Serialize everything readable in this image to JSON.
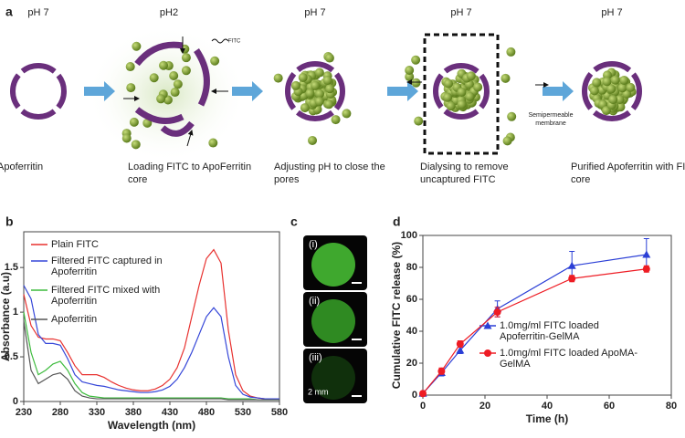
{
  "panel_a": {
    "label": "a",
    "steps": [
      {
        "ph": "pH 7",
        "caption": "Apoferritin"
      },
      {
        "ph": "pH2",
        "caption": "Loading FITC  to ApoFerritin core"
      },
      {
        "ph": "pH 7",
        "caption": "Adjusting pH to close the pores"
      },
      {
        "ph": "pH 7",
        "caption": "Dialysing to remove uncaptured FITC"
      },
      {
        "ph": "pH 7",
        "caption": "Purified Apoferritin with FITC  core"
      }
    ],
    "fitc_tag": "FITC",
    "membrane": "Semipermeable membrane"
  },
  "panel_c": {
    "label": "c",
    "images": [
      "(i)",
      "(ii)",
      "(iii)"
    ],
    "scale": "2 mm"
  },
  "chart_data": [
    {
      "type": "line",
      "label": "b",
      "x_label": "Wavelength (nm)",
      "y_label": "Absorbance (a.u)",
      "xlim": [
        230,
        580
      ],
      "xticks": [
        230,
        280,
        330,
        380,
        430,
        480,
        530,
        580
      ],
      "ylim": [
        0,
        1.9
      ],
      "yticks": [
        0,
        0.5,
        1,
        1.5
      ],
      "legend": "upper left",
      "x": [
        230,
        240,
        250,
        260,
        270,
        280,
        290,
        300,
        310,
        320,
        330,
        340,
        350,
        360,
        370,
        380,
        390,
        400,
        410,
        420,
        430,
        440,
        450,
        460,
        470,
        480,
        490,
        500,
        510,
        520,
        530,
        540,
        550,
        560,
        570,
        580
      ],
      "series": [
        {
          "name": "Plain FITC",
          "color": "#e8312f",
          "values": [
            1.2,
            0.85,
            0.72,
            0.7,
            0.7,
            0.68,
            0.55,
            0.4,
            0.3,
            0.3,
            0.3,
            0.27,
            0.22,
            0.18,
            0.15,
            0.13,
            0.12,
            0.12,
            0.14,
            0.18,
            0.25,
            0.38,
            0.6,
            0.95,
            1.3,
            1.6,
            1.7,
            1.55,
            0.8,
            0.3,
            0.12,
            0.06,
            0.04,
            0.03,
            0.03,
            0.03
          ]
        },
        {
          "name": "Filtered  FITC captured in Apoferritin",
          "color": "#3546d8",
          "values": [
            1.3,
            1.15,
            0.75,
            0.65,
            0.65,
            0.63,
            0.48,
            0.3,
            0.22,
            0.2,
            0.18,
            0.17,
            0.15,
            0.13,
            0.12,
            0.11,
            0.1,
            0.1,
            0.11,
            0.13,
            0.17,
            0.25,
            0.38,
            0.55,
            0.75,
            0.95,
            1.05,
            0.95,
            0.5,
            0.18,
            0.08,
            0.05,
            0.04,
            0.03,
            0.03,
            0.03
          ]
        },
        {
          "name": "Filtered  FITC mixed with Apoferritin",
          "color": "#3dbb3d",
          "values": [
            1.0,
            0.55,
            0.3,
            0.35,
            0.42,
            0.45,
            0.35,
            0.2,
            0.1,
            0.06,
            0.05,
            0.04,
            0.04,
            0.04,
            0.04,
            0.04,
            0.04,
            0.04,
            0.04,
            0.04,
            0.04,
            0.04,
            0.04,
            0.04,
            0.04,
            0.04,
            0.04,
            0.04,
            0.03,
            0.03,
            0.03,
            0.03,
            0.02,
            0.02,
            0.02,
            0.02
          ]
        },
        {
          "name": "Apoferritin",
          "color": "#555555",
          "values": [
            0.9,
            0.35,
            0.2,
            0.25,
            0.3,
            0.32,
            0.25,
            0.12,
            0.06,
            0.04,
            0.03,
            0.03,
            0.03,
            0.03,
            0.03,
            0.03,
            0.03,
            0.03,
            0.03,
            0.03,
            0.03,
            0.03,
            0.03,
            0.03,
            0.03,
            0.03,
            0.03,
            0.03,
            0.02,
            0.02,
            0.02,
            0.02,
            0.02,
            0.02,
            0.02,
            0.02
          ]
        }
      ]
    },
    {
      "type": "line",
      "label": "d",
      "x_label": "Time (h)",
      "y_label": "Cumulative FITC release (%)",
      "xlim": [
        0,
        80
      ],
      "xticks": [
        0,
        20,
        40,
        60,
        80
      ],
      "ylim": [
        0,
        100
      ],
      "yticks": [
        0,
        20,
        40,
        60,
        80,
        100
      ],
      "legend": "center right",
      "x": [
        0,
        6,
        12,
        24,
        48,
        72
      ],
      "series": [
        {
          "name": "1.0mg/ml FITC loaded Apoferritin-GelMA",
          "color": "#2b3fd6",
          "marker": "triangle",
          "values": [
            1,
            14,
            28,
            54,
            81,
            88
          ],
          "errors": [
            0,
            2,
            2,
            5,
            9,
            10
          ]
        },
        {
          "name": "1.0mg/ml FITC loaded ApoMA-GelMA",
          "color": "#ee1c24",
          "marker": "circle",
          "values": [
            1,
            15,
            32,
            52,
            73,
            79
          ],
          "errors": [
            0,
            2,
            2,
            3,
            2,
            2
          ]
        }
      ]
    }
  ]
}
